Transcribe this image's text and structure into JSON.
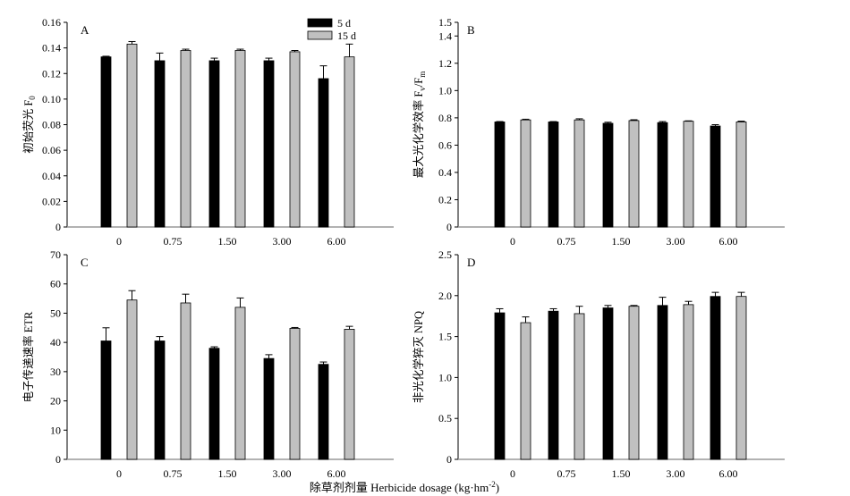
{
  "figure": {
    "xlabel_prefix": "除草剂剂量 Herbicide dosage (kg·hm",
    "xlabel_sup": "-2",
    "xlabel_suffix": ")"
  },
  "legend": {
    "items": [
      {
        "label": "5 d",
        "color": "#000000"
      },
      {
        "label": "15 d",
        "color": "#c0c0c0"
      }
    ],
    "placement": "top-right of panel A"
  },
  "chart_data": [
    {
      "type": "bar",
      "panel": "A",
      "categories": [
        "0",
        "0.75",
        "1.50",
        "3.00",
        "6.00"
      ],
      "ylabel": "初始荧光 F",
      "ylabel_sub": "0",
      "ylim": [
        0,
        0.16
      ],
      "yticks": [
        "0",
        "0.02",
        "0.04",
        "0.06",
        "0.08",
        "0.10",
        "0.12",
        "0.14",
        "0.16"
      ],
      "series": [
        {
          "name": "5 d",
          "color": "#000000",
          "values": [
            0.133,
            0.13,
            0.13,
            0.13,
            0.116
          ],
          "errors": [
            0.0005,
            0.006,
            0.002,
            0.002,
            0.01
          ]
        },
        {
          "name": "15 d",
          "color": "#c0c0c0",
          "values": [
            0.143,
            0.138,
            0.138,
            0.137,
            0.133
          ],
          "errors": [
            0.002,
            0.001,
            0.001,
            0.001,
            0.01
          ]
        }
      ]
    },
    {
      "type": "bar",
      "panel": "B",
      "categories": [
        "0",
        "0.75",
        "1.50",
        "3.00",
        "6.00"
      ],
      "ylabel": "最大光化学效率 F",
      "ylabel_sub": "v",
      "ylabel_mid": "/F",
      "ylabel_sub2": "m",
      "ylim": [
        0,
        1.5
      ],
      "yticks": [
        "0",
        "0.2",
        "0.4",
        "0.6",
        "0.8",
        "1.0",
        "1.2",
        "1.4"
      ],
      "ytick_values": [
        0,
        0.2,
        0.4,
        0.6,
        0.8,
        1.0,
        1.2,
        1.4
      ],
      "ylim_top_label": "1.5",
      "series": [
        {
          "name": "5 d",
          "color": "#000000",
          "values": [
            0.77,
            0.77,
            0.76,
            0.765,
            0.74
          ],
          "errors": [
            0.003,
            0.003,
            0.008,
            0.008,
            0.01
          ]
        },
        {
          "name": "15 d",
          "color": "#c0c0c0",
          "values": [
            0.785,
            0.785,
            0.78,
            0.775,
            0.77
          ],
          "errors": [
            0.005,
            0.008,
            0.006,
            0.003,
            0.006
          ]
        }
      ]
    },
    {
      "type": "bar",
      "panel": "C",
      "categories": [
        "0",
        "0.75",
        "1.50",
        "3.00",
        "6.00"
      ],
      "ylabel": "电子传递速率 ETR",
      "ylim": [
        0,
        70
      ],
      "yticks": [
        "0",
        "10",
        "20",
        "30",
        "40",
        "50",
        "60",
        "70"
      ],
      "series": [
        {
          "name": "5 d",
          "color": "#000000",
          "values": [
            40.5,
            40.5,
            38,
            34.5,
            32.5
          ],
          "errors": [
            4.5,
            1.5,
            0.5,
            1.3,
            0.8
          ]
        },
        {
          "name": "15 d",
          "color": "#c0c0c0",
          "values": [
            54.5,
            53.5,
            52,
            44.8,
            44.5
          ],
          "errors": [
            3.2,
            3.0,
            3.2,
            0.3,
            1.0
          ]
        }
      ]
    },
    {
      "type": "bar",
      "panel": "D",
      "categories": [
        "0",
        "0.75",
        "1.50",
        "3.00",
        "6.00"
      ],
      "ylabel": "非光化学猝灭 NPQ",
      "ylim": [
        0,
        2.5
      ],
      "yticks": [
        "0",
        "0.5",
        "1.0",
        "1.5",
        "2.0",
        "2.5"
      ],
      "series": [
        {
          "name": "5 d",
          "color": "#000000",
          "values": [
            1.79,
            1.81,
            1.85,
            1.88,
            1.99
          ],
          "errors": [
            0.05,
            0.03,
            0.03,
            0.1,
            0.05
          ]
        },
        {
          "name": "15 d",
          "color": "#c0c0c0",
          "values": [
            1.67,
            1.78,
            1.87,
            1.89,
            1.99
          ],
          "errors": [
            0.07,
            0.09,
            0.01,
            0.04,
            0.05
          ]
        }
      ]
    }
  ]
}
